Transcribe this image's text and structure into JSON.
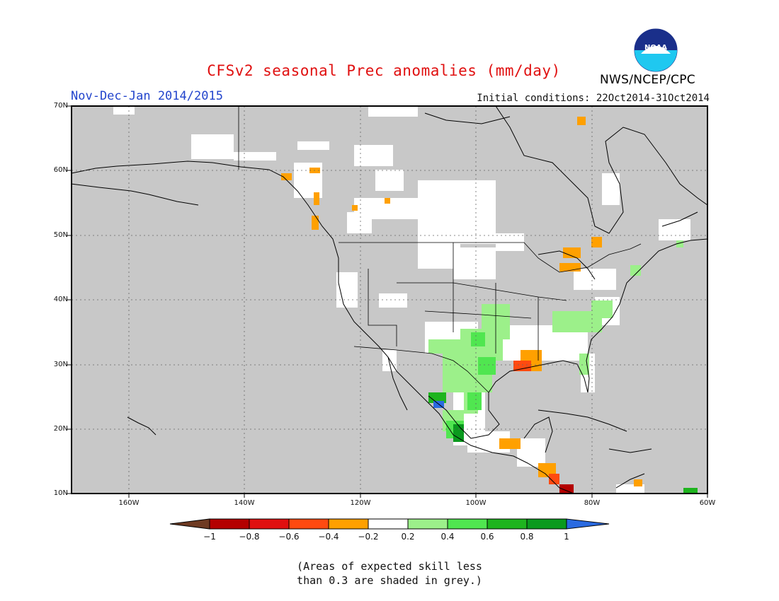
{
  "header": {
    "title": "CFSv2 seasonal Prec anomalies (mm/day)",
    "period": "Nov-Dec-Jan 2014/2015",
    "initial_conditions": "Initial conditions: 22Oct2014-31Oct2014",
    "org": "NWS/NCEP/CPC",
    "logo_text": "NOAA"
  },
  "axes": {
    "lat_labels": [
      "70N",
      "60N",
      "50N",
      "40N",
      "30N",
      "20N",
      "10N"
    ],
    "lon_labels": [
      "160W",
      "140W",
      "120W",
      "100W",
      "80W",
      "60W"
    ]
  },
  "legend": {
    "labels": [
      "-1",
      "-0.8",
      "-0.6",
      "-0.4",
      "-0.2",
      "0.2",
      "0.4",
      "0.6",
      "0.8",
      "1"
    ],
    "colors": [
      "#6e3a22",
      "#b40000",
      "#e01010",
      "#ff4a10",
      "#ffa000",
      "#ffffff",
      "#9cf08a",
      "#50e650",
      "#1eb41e",
      "#0a9a1e",
      "#2a6ae0"
    ]
  },
  "note": {
    "line1": "(Areas of expected skill less",
    "line2": "than 0.3 are shaded in grey.)"
  },
  "colors": {
    "grey_mask": "#c8c8c8",
    "coast": "#000000",
    "grid": "#666666"
  }
}
